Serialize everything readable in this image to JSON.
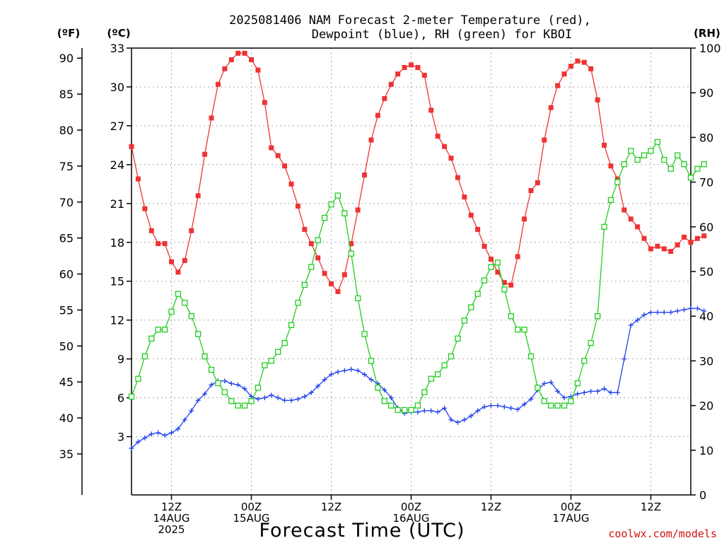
{
  "chart_data": {
    "type": "line",
    "title_lines": [
      "2025081406 NAM Forecast 2-meter Temperature (red),",
      "Dewpoint (blue), RH (green) for KBOI"
    ],
    "units": {
      "left_outer": "(ºF)",
      "left_inner": "(ºC)",
      "right": "(RH)"
    },
    "xlabel": "Forecast Time (UTC)",
    "credit": "coolwx.com/models",
    "x_ticks": [
      {
        "hour": 6,
        "lines": [
          "12Z",
          "14AUG",
          "2025"
        ]
      },
      {
        "hour": 18,
        "lines": [
          "00Z",
          "15AUG"
        ]
      },
      {
        "hour": 30,
        "lines": [
          "12Z"
        ]
      },
      {
        "hour": 42,
        "lines": [
          "00Z",
          "16AUG"
        ]
      },
      {
        "hour": 54,
        "lines": [
          "12Z"
        ]
      },
      {
        "hour": 66,
        "lines": [
          "00Z",
          "17AUG"
        ]
      },
      {
        "hour": 78,
        "lines": [
          "12Z"
        ]
      }
    ],
    "xlim_hours": [
      0,
      84
    ],
    "celsius_axis": {
      "range": [
        -1.5,
        33
      ],
      "ticks": [
        3,
        6,
        9,
        12,
        15,
        18,
        21,
        24,
        27,
        30,
        33
      ]
    },
    "fahrenheit_axis": {
      "ticks": [
        35,
        40,
        45,
        50,
        55,
        60,
        65,
        70,
        75,
        80,
        85,
        90
      ]
    },
    "rh_axis": {
      "range": [
        0,
        100
      ],
      "ticks": [
        0,
        10,
        20,
        30,
        40,
        50,
        60,
        70,
        80,
        90,
        100
      ]
    },
    "series": [
      {
        "name": "2-meter Temperature (°C)",
        "color": "#ee3333",
        "marker": "filled-square",
        "axis": "celsius",
        "values": [
          25.4,
          22.9,
          20.6,
          18.9,
          17.9,
          17.9,
          16.5,
          15.7,
          16.6,
          18.9,
          21.6,
          24.8,
          27.6,
          30.2,
          31.4,
          32.1,
          32.6,
          32.6,
          32.1,
          31.3,
          28.8,
          25.3,
          24.7,
          23.9,
          22.5,
          20.8,
          19.0,
          17.9,
          16.8,
          15.6,
          14.8,
          14.2,
          15.5,
          17.9,
          20.5,
          23.2,
          25.9,
          27.8,
          29.1,
          30.2,
          31.0,
          31.5,
          31.7,
          31.5,
          30.9,
          28.2,
          26.2,
          25.4,
          24.5,
          23.0,
          21.5,
          20.1,
          19.0,
          17.7,
          16.7,
          15.7,
          14.9,
          14.7,
          16.9,
          19.8,
          22.0,
          22.6,
          25.9,
          28.4,
          30.1,
          31.0,
          31.6,
          32.0,
          31.9,
          31.4,
          29.0,
          25.5,
          23.9,
          22.9,
          20.5,
          19.8,
          19.2,
          18.3,
          17.5,
          17.7,
          17.5,
          17.3,
          17.8,
          18.4,
          18.0,
          18.3,
          18.5
        ]
      },
      {
        "name": "Dewpoint (°C)",
        "color": "#2244ee",
        "marker": "plus",
        "axis": "celsius",
        "values": [
          2.1,
          2.6,
          2.9,
          3.2,
          3.3,
          3.1,
          3.3,
          3.6,
          4.3,
          5.0,
          5.8,
          6.3,
          7.0,
          7.3,
          7.3,
          7.1,
          7.0,
          6.7,
          6.1,
          5.9,
          6.0,
          6.2,
          6.0,
          5.8,
          5.8,
          5.9,
          6.1,
          6.4,
          6.9,
          7.4,
          7.8,
          8.0,
          8.1,
          8.2,
          8.1,
          7.8,
          7.4,
          7.1,
          6.6,
          6.0,
          5.2,
          4.8,
          4.9,
          4.9,
          5.0,
          5.0,
          4.9,
          5.2,
          4.3,
          4.1,
          4.3,
          4.6,
          5.0,
          5.3,
          5.4,
          5.4,
          5.3,
          5.2,
          5.1,
          5.5,
          5.9,
          6.6,
          7.1,
          7.2,
          6.5,
          6.0,
          6.1,
          6.3,
          6.4,
          6.5,
          6.5,
          6.7,
          6.4,
          6.4,
          9.0,
          11.6,
          12.0,
          12.4,
          12.6,
          12.6,
          12.6,
          12.6,
          12.7,
          12.8,
          12.9,
          12.9,
          12.7
        ]
      },
      {
        "name": "RH (%)",
        "color": "#22cc22",
        "marker": "open-square",
        "axis": "rh",
        "values": [
          22,
          26,
          31,
          35,
          37,
          37,
          41,
          45,
          43,
          40,
          36,
          31,
          28,
          25,
          23,
          21,
          20,
          20,
          21,
          24,
          29,
          30,
          32,
          34,
          38,
          43,
          47,
          51,
          57,
          62,
          65,
          67,
          63,
          54,
          44,
          36,
          30,
          24,
          21,
          20,
          19,
          19,
          19,
          20,
          23,
          26,
          27,
          29,
          31,
          35,
          39,
          42,
          45,
          48,
          51,
          52,
          46,
          40,
          37,
          37,
          31,
          24,
          21,
          20,
          20,
          20,
          21,
          25,
          30,
          34,
          40,
          60,
          66,
          70,
          74,
          77,
          75,
          76,
          77,
          79,
          75,
          73,
          76,
          74,
          71,
          73,
          74
        ]
      }
    ]
  }
}
